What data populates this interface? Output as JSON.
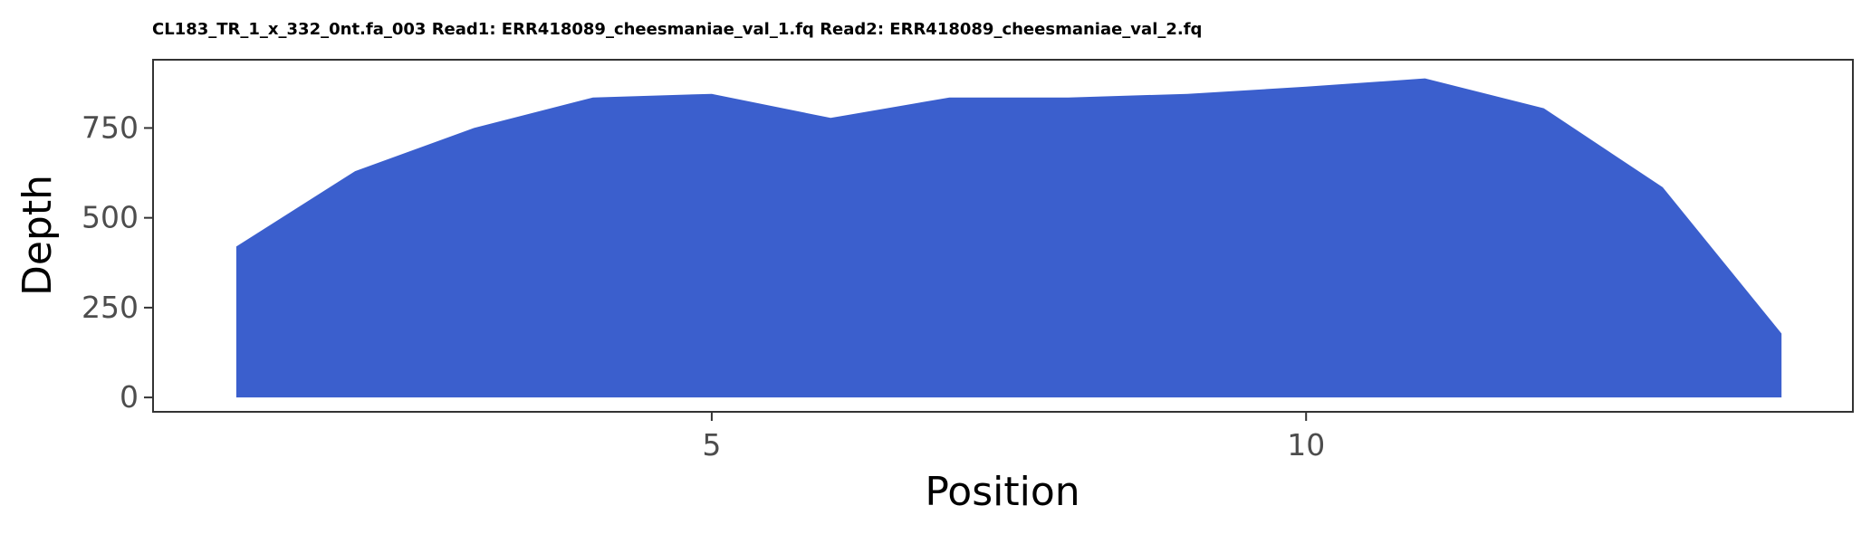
{
  "chart_data": {
    "type": "area",
    "title": "CL183_TR_1_x_332_0nt.fa_003 Read1: ERR418089_cheesmaniae_val_1.fq Read2: ERR418089_cheesmaniae_val_2.fq",
    "xlabel": "Position",
    "ylabel": "Depth",
    "xlim": [
      0.3,
      14.6
    ],
    "ylim": [
      -40,
      940
    ],
    "x_ticks": [
      5,
      10
    ],
    "x_tick_labels": [
      "5",
      "10"
    ],
    "y_ticks": [
      0,
      250,
      500,
      750
    ],
    "y_tick_labels": [
      "0",
      "250",
      "500",
      "750"
    ],
    "grid": false,
    "series": [
      {
        "name": "Depth",
        "color": "#3b5fcd",
        "x": [
          1,
          2,
          3,
          4,
          5,
          6,
          7,
          8,
          9,
          10,
          11,
          12,
          13,
          14
        ],
        "values": [
          420,
          630,
          750,
          835,
          845,
          778,
          835,
          835,
          845,
          865,
          888,
          805,
          585,
          178
        ]
      }
    ]
  }
}
